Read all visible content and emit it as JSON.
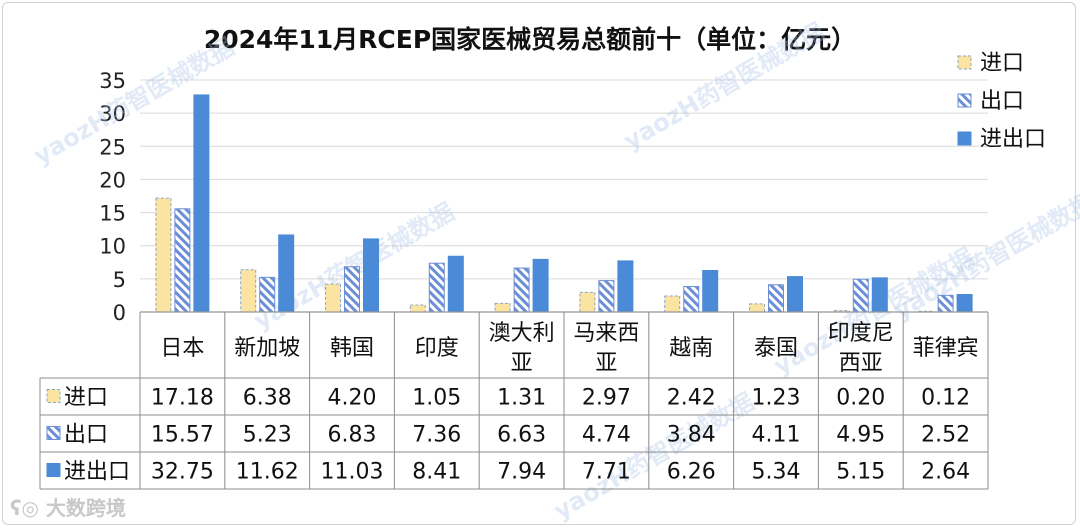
{
  "chart_data": {
    "type": "bar",
    "title": "2024年11月RCEP国家医械贸易总额前十（单位：亿元）",
    "categories": [
      [
        "日本"
      ],
      [
        "新加坡"
      ],
      [
        "韩国"
      ],
      [
        "印度"
      ],
      [
        "澳大利",
        "亚"
      ],
      [
        "马来西",
        "亚"
      ],
      [
        "越南"
      ],
      [
        "泰国"
      ],
      [
        "印度尼",
        "西亚"
      ],
      [
        "菲律宾"
      ]
    ],
    "series": [
      {
        "name": "进口",
        "values": [
          17.18,
          6.38,
          4.2,
          1.05,
          1.31,
          2.97,
          2.42,
          1.23,
          0.2,
          0.12
        ],
        "labels": [
          "17.18",
          "6.38",
          "4.20",
          "1.05",
          "1.31",
          "2.97",
          "2.42",
          "1.23",
          "0.20",
          "0.12"
        ]
      },
      {
        "name": "出口",
        "values": [
          15.57,
          5.23,
          6.83,
          7.36,
          6.63,
          4.74,
          3.84,
          4.11,
          4.95,
          2.52
        ],
        "labels": [
          "15.57",
          "5.23",
          "6.83",
          "7.36",
          "6.63",
          "4.74",
          "3.84",
          "4.11",
          "4.95",
          "2.52"
        ]
      },
      {
        "name": "进出口",
        "values": [
          32.75,
          11.62,
          11.03,
          8.41,
          7.94,
          7.71,
          6.26,
          5.34,
          5.15,
          2.64
        ],
        "labels": [
          "32.75",
          "11.62",
          "11.03",
          "8.41",
          "7.94",
          "7.71",
          "6.26",
          "5.34",
          "5.15",
          "2.64"
        ]
      }
    ],
    "ylim": [
      0,
      35
    ],
    "yticks": [
      "0",
      "5",
      "10",
      "15",
      "20",
      "25",
      "30",
      "35"
    ],
    "grid": true,
    "legend": "top-right",
    "data_table": true
  },
  "colors": {
    "import_fill": "#fbe3a1",
    "import_border": "#8aa6c8",
    "export_stroke": "#6b8fd6",
    "export_fill": "#ffffff",
    "total_fill": "#4a8ad6",
    "grid": "#d9d9d9",
    "axis": "#bfbfbf",
    "watermark": "#a9c4e4"
  },
  "watermark": {
    "text": "yaozH药智医械数据"
  },
  "footer": {
    "logo_text": "大数跨境"
  }
}
